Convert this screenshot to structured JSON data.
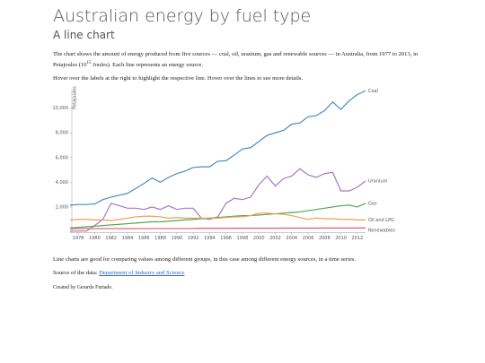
{
  "header": {
    "title": "Australian energy by fuel type",
    "subtitle": "A line chart"
  },
  "paragraphs": {
    "intro_before": "The chart shows the amount of energy produced from five sources — coal, oil, uranium, gas and renewable sources — in Australia, from 1977 to 2013, in Petajoules (10",
    "intro_sup": "15",
    "intro_after": " Joules). Each line represents an energy source.",
    "hover": "Hover over the labels at the right to highlight the respective line. Hover over the lines to see more details.",
    "comparison": "Line charts are good for comparing values among different groups, in this case among different energy sources, in a time series.",
    "source_label": "Source of the data: ",
    "source_link": "Department of Industry and Science",
    "credit": "Created by Gerardo Furtado."
  },
  "chart_data": {
    "type": "line",
    "y_label": "Petajoules",
    "x": [
      1977,
      1978,
      1979,
      1980,
      1981,
      1982,
      1983,
      1984,
      1985,
      1986,
      1987,
      1988,
      1989,
      1990,
      1991,
      1992,
      1993,
      1994,
      1995,
      1996,
      1997,
      1998,
      1999,
      2000,
      2001,
      2002,
      2003,
      2004,
      2005,
      2006,
      2007,
      2008,
      2009,
      2010,
      2011,
      2012,
      2013
    ],
    "xlim": [
      1977,
      2013
    ],
    "xticks": [
      1978,
      1980,
      1982,
      1984,
      1986,
      1988,
      1990,
      1992,
      1994,
      1996,
      1998,
      2000,
      2002,
      2004,
      2006,
      2008,
      2010,
      2012
    ],
    "ylim": [
      0,
      11500
    ],
    "yticks": [
      {
        "value": 2000,
        "label": "2,000"
      },
      {
        "value": 4000,
        "label": "4,000"
      },
      {
        "value": 6000,
        "label": "6,000"
      },
      {
        "value": 8000,
        "label": "8,000"
      },
      {
        "value": 10000,
        "label": "10,000"
      }
    ],
    "series": [
      {
        "name": "Coal",
        "color": "#4a8bbd",
        "values": [
          2150,
          2200,
          2200,
          2250,
          2600,
          2800,
          2950,
          3100,
          3500,
          3900,
          4350,
          4000,
          4400,
          4700,
          4900,
          5200,
          5250,
          5250,
          5700,
          5750,
          6200,
          6700,
          6800,
          7300,
          7800,
          8000,
          8200,
          8700,
          8800,
          9300,
          9400,
          9800,
          10500,
          9900,
          10600,
          11100,
          11400
        ]
      },
      {
        "name": "Uranium",
        "color": "#a678c4",
        "values": [
          50,
          50,
          50,
          500,
          1000,
          2300,
          2100,
          1900,
          1900,
          1800,
          2000,
          1800,
          2100,
          1800,
          1900,
          1900,
          1100,
          1000,
          1200,
          2300,
          2700,
          2600,
          2800,
          3800,
          4500,
          3700,
          4300,
          4500,
          5100,
          4600,
          4400,
          4700,
          4800,
          3300,
          3300,
          3600,
          4100
        ]
      },
      {
        "name": "Gas",
        "color": "#4fa64f",
        "values": [
          300,
          350,
          400,
          450,
          500,
          550,
          600,
          650,
          700,
          750,
          800,
          800,
          850,
          900,
          950,
          1000,
          1050,
          1100,
          1150,
          1200,
          1250,
          1300,
          1300,
          1350,
          1400,
          1450,
          1500,
          1550,
          1600,
          1700,
          1800,
          1900,
          2000,
          2100,
          2150,
          2000,
          2300
        ]
      },
      {
        "name": "Oil and LPG",
        "color": "#f0a050",
        "values": [
          950,
          1000,
          1000,
          950,
          950,
          900,
          1000,
          1100,
          1200,
          1250,
          1250,
          1200,
          1100,
          1150,
          1100,
          1100,
          1100,
          1100,
          1100,
          1150,
          1200,
          1200,
          1300,
          1500,
          1500,
          1450,
          1400,
          1300,
          1150,
          1000,
          1100,
          1050,
          1050,
          1000,
          1000,
          950,
          950
        ]
      },
      {
        "name": "Renewables",
        "color": "#e05a6a",
        "values": [
          250,
          250,
          250,
          250,
          250,
          250,
          250,
          250,
          250,
          250,
          260,
          260,
          260,
          260,
          260,
          260,
          270,
          270,
          270,
          270,
          280,
          280,
          280,
          280,
          280,
          280,
          290,
          290,
          290,
          290,
          290,
          300,
          300,
          300,
          300,
          300,
          310
        ]
      }
    ]
  }
}
